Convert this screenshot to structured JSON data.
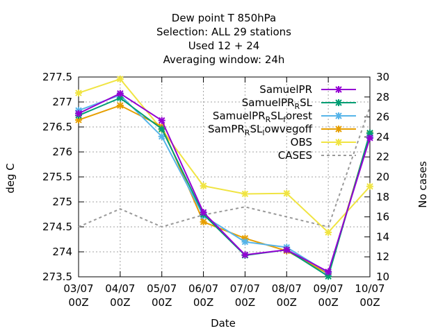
{
  "chart_data": {
    "type": "line",
    "title_lines": [
      "Dew point T 850hPa",
      "Selection: ALL      29 stations",
      "Used  12 + 24",
      "Averaging window: 24h"
    ],
    "xlabel": "Date",
    "ylabel": "deg C",
    "y2label": "No cases",
    "categories": [
      [
        "03/07",
        "00Z"
      ],
      [
        "04/07",
        "00Z"
      ],
      [
        "05/07",
        "00Z"
      ],
      [
        "06/07",
        "00Z"
      ],
      [
        "07/07",
        "00Z"
      ],
      [
        "08/07",
        "00Z"
      ],
      [
        "09/07",
        "00Z"
      ],
      [
        "10/07",
        "00Z"
      ]
    ],
    "y_ticks": [
      "273.5",
      "274",
      "274.5",
      "275",
      "275.5",
      "276",
      "276.5",
      "277",
      "277.5"
    ],
    "y2_ticks": [
      "10",
      "12",
      "14",
      "16",
      "18",
      "20",
      "22",
      "24",
      "26",
      "28",
      "30"
    ],
    "ylim": [
      273.5,
      277.5
    ],
    "y2lim": [
      10,
      30
    ],
    "grid": true,
    "legend_position": "top-right",
    "series": [
      {
        "name": "SamuelPR",
        "color": "#9400d3",
        "axis": "y",
        "values": [
          276.77,
          277.17,
          276.63,
          274.79,
          273.94,
          274.04,
          273.6,
          276.28
        ]
      },
      {
        "name": "SamuelPR_RSL",
        "color": "#009e73",
        "axis": "y",
        "values": [
          276.73,
          277.08,
          276.46,
          274.75,
          273.93,
          274.04,
          273.51,
          276.38
        ]
      },
      {
        "name": "SamuelPR_RSL_forest",
        "color": "#56b4e9",
        "axis": "y",
        "values": [
          276.83,
          277.14,
          276.31,
          274.72,
          274.2,
          274.09,
          273.58,
          276.31
        ]
      },
      {
        "name": "SamPR_RSL_lowvegoff",
        "color": "#e69f00",
        "axis": "y",
        "values": [
          276.64,
          276.93,
          276.51,
          274.6,
          274.27,
          274.02,
          273.56,
          276.37
        ]
      },
      {
        "name": "OBS",
        "color": "#f0e442",
        "axis": "y",
        "values": [
          277.18,
          277.46,
          276.45,
          275.32,
          275.16,
          275.17,
          274.39,
          275.31
        ]
      },
      {
        "name": "CASES",
        "color": "#999999",
        "axis": "y2",
        "dashed": true,
        "values": [
          15,
          16.8,
          15,
          16.2,
          17,
          16,
          15,
          27
        ]
      }
    ],
    "legend_labels": [
      {
        "main": "SamuelPR",
        "sub": []
      },
      {
        "main": "SamuelPR",
        "sub": [
          "R",
          "SL"
        ]
      },
      {
        "main": "SamuelPR",
        "sub": [
          "R",
          "SL",
          "f",
          "orest"
        ]
      },
      {
        "main": "SamPR",
        "sub": [
          "R",
          "SL",
          "l",
          "owvegoff"
        ]
      },
      {
        "main": "OBS",
        "sub": []
      },
      {
        "main": "CASES",
        "sub": []
      }
    ]
  }
}
